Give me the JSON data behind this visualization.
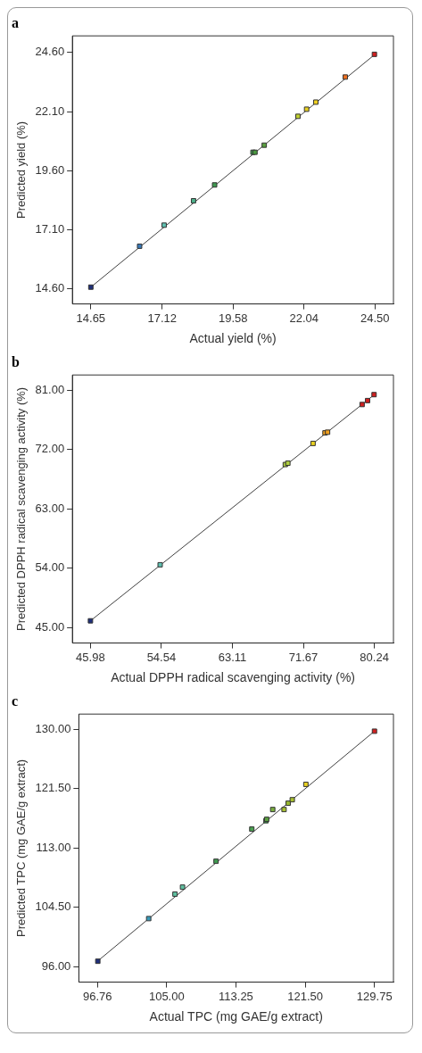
{
  "chart_data": [
    {
      "type": "scatter",
      "title": "a",
      "xlabel": "Actual yield (%)",
      "ylabel": "Predicted yield (%)",
      "marker": "square",
      "grid": false,
      "legend": false,
      "xlim": [
        14.01,
        25.14
      ],
      "ylim": [
        13.97,
        25.3
      ],
      "xticks": [
        {
          "value": 14.65,
          "label": "14.65"
        },
        {
          "value": 17.12,
          "label": "17.12"
        },
        {
          "value": 19.58,
          "label": "19.58"
        },
        {
          "value": 22.04,
          "label": "22.04"
        },
        {
          "value": 24.5,
          "label": "24.50"
        }
      ],
      "yticks": [
        {
          "value": 14.6,
          "label": "14.60"
        },
        {
          "value": 17.1,
          "label": "17.10"
        },
        {
          "value": 19.6,
          "label": "19.60"
        },
        {
          "value": 22.1,
          "label": "22.10"
        },
        {
          "value": 24.6,
          "label": "24.60"
        }
      ],
      "series": [
        {
          "type": "line",
          "marker": "none",
          "line_style": "solid",
          "color": "#404040",
          "x": [
            14.65,
            24.5
          ],
          "values": [
            14.68,
            24.52
          ]
        },
        {
          "x": [
            14.65,
            16.34,
            17.19,
            18.21,
            18.94,
            20.27,
            20.34,
            20.66,
            21.83,
            22.13,
            22.45,
            23.47,
            24.48
          ],
          "values": [
            14.68,
            16.41,
            17.3,
            18.33,
            19.0,
            20.38,
            20.38,
            20.68,
            21.9,
            22.2,
            22.5,
            23.56,
            24.52
          ],
          "colors": [
            "#1f2f7a",
            "#3a7ab8",
            "#5fc0b0",
            "#4db08a",
            "#3f9a50",
            "#3f9a50",
            "#4a9a40",
            "#5aa040",
            "#c0d030",
            "#e8d020",
            "#f0d020",
            "#f07020",
            "#d02020"
          ]
        }
      ]
    },
    {
      "type": "scatter",
      "title": "b",
      "xlabel": "Actual DPPH radical scavenging activity (%)",
      "ylabel": "Predicted DPPH radical scavenging activity (%)",
      "marker": "square",
      "grid": false,
      "legend": false,
      "xlim": [
        43.8,
        82.54
      ],
      "ylim": [
        42.63,
        83.28
      ],
      "xticks": [
        {
          "value": 45.98,
          "label": "45.98"
        },
        {
          "value": 54.54,
          "label": "54.54"
        },
        {
          "value": 63.11,
          "label": "63.11"
        },
        {
          "value": 71.67,
          "label": "71.67"
        },
        {
          "value": 80.24,
          "label": "80.24"
        }
      ],
      "yticks": [
        {
          "value": 45,
          "label": "45.00"
        },
        {
          "value": 54,
          "label": "54.00"
        },
        {
          "value": 63,
          "label": "63.00"
        },
        {
          "value": 72,
          "label": "72.00"
        },
        {
          "value": 81,
          "label": "81.00"
        }
      ],
      "series": [
        {
          "type": "line",
          "marker": "none",
          "line_style": "solid",
          "color": "#404040",
          "x": [
            45.98,
            80.24
          ],
          "values": [
            46,
            80.3
          ]
        },
        {
          "x": [
            45.98,
            54.39,
            69.49,
            69.8,
            72.84,
            74.28,
            74.59,
            78.76,
            79.42,
            80.2
          ],
          "values": [
            46,
            54.5,
            69.7,
            69.9,
            72.9,
            74.5,
            74.6,
            78.8,
            79.4,
            80.3
          ],
          "colors": [
            "#1f2f7a",
            "#5fc0b0",
            "#b0d040",
            "#b0d040",
            "#e8d020",
            "#f0a020",
            "#f0a020",
            "#d02020",
            "#d02020",
            "#d02020"
          ]
        }
      ]
    },
    {
      "type": "scatter",
      "title": "c",
      "xlabel": "Actual TPC (mg GAE/g extract)",
      "ylabel": "Predicted TPC (mg GAE/g extract)",
      "marker": "square",
      "grid": false,
      "legend": false,
      "xlim": [
        94.54,
        132.01
      ],
      "ylim": [
        93.81,
        132.15
      ],
      "xticks": [
        {
          "value": 96.76,
          "label": "96.76"
        },
        {
          "value": 105,
          "label": "105.00"
        },
        {
          "value": 113.25,
          "label": "113.25"
        },
        {
          "value": 121.5,
          "label": "121.50"
        },
        {
          "value": 129.75,
          "label": "129.75"
        }
      ],
      "yticks": [
        {
          "value": 96,
          "label": "96.00"
        },
        {
          "value": 104.5,
          "label": "104.50"
        },
        {
          "value": 113,
          "label": "113.00"
        },
        {
          "value": 121.5,
          "label": "121.50"
        },
        {
          "value": 130,
          "label": "130.00"
        }
      ],
      "series": [
        {
          "type": "line",
          "marker": "none",
          "line_style": "solid",
          "color": "#404040",
          "x": [
            96.76,
            129.75
          ],
          "values": [
            96.8,
            129.7
          ]
        },
        {
          "x": [
            96.8,
            102.86,
            105.99,
            106.89,
            110.88,
            115.14,
            116.83,
            116.91,
            117.63,
            118.98,
            119.47,
            119.96,
            121.58,
            129.75
          ],
          "values": [
            96.8,
            102.9,
            106.4,
            107.4,
            111.1,
            115.7,
            116.9,
            117.1,
            118.5,
            118.5,
            119.4,
            119.9,
            122.1,
            129.7
          ],
          "colors": [
            "#1f2f7a",
            "#3a9ab8",
            "#5fc0a0",
            "#5fc0a0",
            "#3f9a50",
            "#4aa050",
            "#3f9a50",
            "#5aa040",
            "#7ab040",
            "#a8c030",
            "#98b830",
            "#a8c030",
            "#e8d020",
            "#d02020"
          ]
        }
      ]
    }
  ]
}
